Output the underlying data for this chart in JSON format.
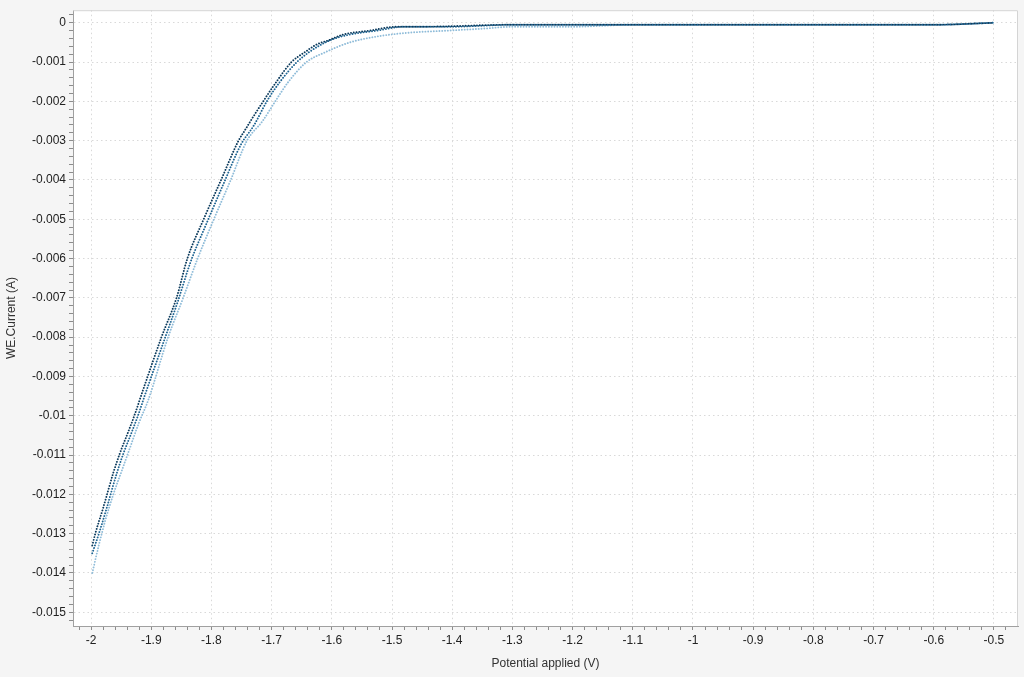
{
  "chart_data": {
    "type": "line",
    "xlabel": "Potential applied (V)",
    "ylabel": "WE.Current (A)",
    "xlim": [
      -2.03,
      -0.46
    ],
    "ylim": [
      -0.01535,
      0.00032
    ],
    "xticks": [
      {
        "value": -2.02,
        "label": null
      },
      -2,
      {
        "value": -1.98,
        "label": null
      },
      {
        "value": -1.96,
        "label": null
      },
      {
        "value": -1.94,
        "label": null
      },
      {
        "value": -1.92,
        "label": null
      },
      -1.9,
      {
        "value": -1.88,
        "label": null
      },
      {
        "value": -1.86,
        "label": null
      },
      {
        "value": -1.84,
        "label": null
      },
      {
        "value": -1.82,
        "label": null
      },
      -1.8,
      {
        "value": -1.78,
        "label": null
      },
      {
        "value": -1.76,
        "label": null
      },
      {
        "value": -1.74,
        "label": null
      },
      {
        "value": -1.72,
        "label": null
      },
      -1.7,
      {
        "value": -1.68,
        "label": null
      },
      {
        "value": -1.66,
        "label": null
      },
      {
        "value": -1.64,
        "label": null
      },
      {
        "value": -1.62,
        "label": null
      },
      -1.6,
      {
        "value": -1.58,
        "label": null
      },
      {
        "value": -1.56,
        "label": null
      },
      {
        "value": -1.54,
        "label": null
      },
      {
        "value": -1.52,
        "label": null
      },
      -1.5,
      {
        "value": -1.48,
        "label": null
      },
      {
        "value": -1.46,
        "label": null
      },
      {
        "value": -1.44,
        "label": null
      },
      {
        "value": -1.42,
        "label": null
      },
      -1.4,
      {
        "value": -1.38,
        "label": null
      },
      {
        "value": -1.36,
        "label": null
      },
      {
        "value": -1.34,
        "label": null
      },
      {
        "value": -1.32,
        "label": null
      },
      -1.3,
      {
        "value": -1.28,
        "label": null
      },
      {
        "value": -1.26,
        "label": null
      },
      {
        "value": -1.24,
        "label": null
      },
      {
        "value": -1.22,
        "label": null
      },
      -1.2,
      {
        "value": -1.18,
        "label": null
      },
      {
        "value": -1.16,
        "label": null
      },
      {
        "value": -1.14,
        "label": null
      },
      {
        "value": -1.12,
        "label": null
      },
      -1.1,
      {
        "value": -1.08,
        "label": null
      },
      {
        "value": -1.06,
        "label": null
      },
      {
        "value": -1.04,
        "label": null
      },
      {
        "value": -1.02,
        "label": null
      },
      -1,
      {
        "value": -0.98,
        "label": null
      },
      {
        "value": -0.96,
        "label": null
      },
      {
        "value": -0.94,
        "label": null
      },
      {
        "value": -0.92,
        "label": null
      },
      -0.9,
      {
        "value": -0.88,
        "label": null
      },
      {
        "value": -0.86,
        "label": null
      },
      {
        "value": -0.84,
        "label": null
      },
      {
        "value": -0.82,
        "label": null
      },
      -0.8,
      {
        "value": -0.78,
        "label": null
      },
      {
        "value": -0.76,
        "label": null
      },
      {
        "value": -0.74,
        "label": null
      },
      {
        "value": -0.72,
        "label": null
      },
      -0.7,
      {
        "value": -0.68,
        "label": null
      },
      {
        "value": -0.66,
        "label": null
      },
      {
        "value": -0.64,
        "label": null
      },
      {
        "value": -0.62,
        "label": null
      },
      -0.6,
      {
        "value": -0.58,
        "label": null
      },
      {
        "value": -0.56,
        "label": null
      },
      {
        "value": -0.54,
        "label": null
      },
      {
        "value": -0.52,
        "label": null
      },
      -0.5,
      {
        "value": -0.48,
        "label": null
      }
    ],
    "yticks": [
      {
        "value": 0.0002,
        "label": null
      },
      0,
      {
        "value": -0.0002,
        "label": null
      },
      {
        "value": -0.0004,
        "label": null
      },
      {
        "value": -0.0006,
        "label": null
      },
      {
        "value": -0.0008,
        "label": null
      },
      -0.001,
      {
        "value": -0.0012,
        "label": null
      },
      {
        "value": -0.0014,
        "label": null
      },
      {
        "value": -0.0016,
        "label": null
      },
      {
        "value": -0.0018,
        "label": null
      },
      -0.002,
      {
        "value": -0.0022,
        "label": null
      },
      {
        "value": -0.0024,
        "label": null
      },
      {
        "value": -0.0026,
        "label": null
      },
      {
        "value": -0.0028,
        "label": null
      },
      -0.003,
      {
        "value": -0.0032,
        "label": null
      },
      {
        "value": -0.0034,
        "label": null
      },
      {
        "value": -0.0036,
        "label": null
      },
      {
        "value": -0.0038,
        "label": null
      },
      -0.004,
      {
        "value": -0.0042,
        "label": null
      },
      {
        "value": -0.0044,
        "label": null
      },
      {
        "value": -0.0046,
        "label": null
      },
      {
        "value": -0.0048,
        "label": null
      },
      -0.005,
      {
        "value": -0.0052,
        "label": null
      },
      {
        "value": -0.0054,
        "label": null
      },
      {
        "value": -0.0056,
        "label": null
      },
      {
        "value": -0.0058,
        "label": null
      },
      -0.006,
      {
        "value": -0.0062,
        "label": null
      },
      {
        "value": -0.0064,
        "label": null
      },
      {
        "value": -0.0066,
        "label": null
      },
      {
        "value": -0.0068,
        "label": null
      },
      -0.007,
      {
        "value": -0.0072,
        "label": null
      },
      {
        "value": -0.0074,
        "label": null
      },
      {
        "value": -0.0076,
        "label": null
      },
      {
        "value": -0.0078,
        "label": null
      },
      -0.008,
      {
        "value": -0.0082,
        "label": null
      },
      {
        "value": -0.0084,
        "label": null
      },
      {
        "value": -0.0086,
        "label": null
      },
      {
        "value": -0.0088,
        "label": null
      },
      -0.009,
      {
        "value": -0.0092,
        "label": null
      },
      {
        "value": -0.0094,
        "label": null
      },
      {
        "value": -0.0096,
        "label": null
      },
      {
        "value": -0.0098,
        "label": null
      },
      -0.01,
      {
        "value": -0.0102,
        "label": null
      },
      {
        "value": -0.0104,
        "label": null
      },
      {
        "value": -0.0106,
        "label": null
      },
      {
        "value": -0.0108,
        "label": null
      },
      -0.011,
      {
        "value": -0.0112,
        "label": null
      },
      {
        "value": -0.0114,
        "label": null
      },
      {
        "value": -0.0116,
        "label": null
      },
      {
        "value": -0.0118,
        "label": null
      },
      -0.012,
      {
        "value": -0.0122,
        "label": null
      },
      {
        "value": -0.0124,
        "label": null
      },
      {
        "value": -0.0126,
        "label": null
      },
      {
        "value": -0.0128,
        "label": null
      },
      -0.013,
      {
        "value": -0.0132,
        "label": null
      },
      {
        "value": -0.0134,
        "label": null
      },
      {
        "value": -0.0136,
        "label": null
      },
      {
        "value": -0.0138,
        "label": null
      },
      -0.014,
      {
        "value": -0.0142,
        "label": null
      },
      {
        "value": -0.0144,
        "label": null
      },
      {
        "value": -0.0146,
        "label": null
      },
      {
        "value": -0.0148,
        "label": null
      },
      -0.015,
      {
        "value": -0.0152,
        "label": null
      }
    ],
    "grid": true,
    "legend": false,
    "line_style": "dotted",
    "series": [
      {
        "color": "#0b3a5c",
        "x": [
          -1.998,
          -1.993,
          -1.98,
          -1.963,
          -1.952,
          -1.938,
          -1.927,
          -1.916,
          -1.883,
          -1.858,
          -1.84,
          -1.813,
          -1.784,
          -1.755,
          -1.747,
          -1.735,
          -1.714,
          -1.692,
          -1.667,
          -1.645,
          -1.625,
          -1.606,
          -1.581,
          -1.537,
          -1.492,
          -1.45,
          -1.3,
          -1.2,
          -1,
          -0.8,
          -0.6,
          -0.5
        ],
        "values": [
          -0.0133,
          -0.013,
          -0.01235,
          -0.01145,
          -0.01095,
          -0.0104,
          -0.00995,
          -0.00945,
          -0.008,
          -0.007,
          -0.006,
          -0.005,
          -0.004,
          -0.003,
          -0.0028,
          -0.0025,
          -0.002,
          -0.0015,
          -0.001,
          -0.00075,
          -0.00055,
          -0.00045,
          -0.0003,
          -0.0002,
          -0.0001,
          -0.0001,
          -5e-05,
          -5e-05,
          -5e-05,
          -5e-05,
          -5e-05,
          0
        ]
      },
      {
        "color": "#1f6593",
        "x": [
          -1.998,
          -1.987,
          -1.974,
          -1.957,
          -1.946,
          -1.932,
          -1.921,
          -1.91,
          -1.879,
          -1.856,
          -1.835,
          -1.808,
          -1.78,
          -1.751,
          -1.729,
          -1.708,
          -1.686,
          -1.658,
          -1.638,
          -1.617,
          -1.595,
          -1.57,
          -1.525,
          -1.48,
          -1.4,
          -1.3,
          -1.2,
          -1,
          -0.8,
          -0.6,
          -0.5
        ],
        "values": [
          -0.0135,
          -0.013,
          -0.01235,
          -0.01145,
          -0.01095,
          -0.0104,
          -0.00995,
          -0.00945,
          -0.0081,
          -0.0071,
          -0.0061,
          -0.0051,
          -0.0041,
          -0.0031,
          -0.0026,
          -0.002,
          -0.0015,
          -0.001,
          -0.00075,
          -0.00055,
          -0.0004,
          -0.0003,
          -0.0002,
          -0.0001,
          -0.0001,
          -5e-05,
          -5e-05,
          -5e-05,
          -5e-05,
          -5e-05,
          0
        ]
      },
      {
        "color": "#8fbcd9",
        "x": [
          -1.998,
          -1.988,
          -1.977,
          -1.963,
          -1.949,
          -1.935,
          -1.921,
          -1.905,
          -1.872,
          -1.847,
          -1.823,
          -1.796,
          -1.768,
          -1.741,
          -1.715,
          -1.694,
          -1.672,
          -1.642,
          -1.611,
          -1.57,
          -1.525,
          -1.47,
          -1.409,
          -1.35,
          -1.299,
          -1.2,
          -1.1,
          -1,
          -0.8,
          -0.6,
          -0.5
        ],
        "values": [
          -0.014,
          -0.01335,
          -0.0127,
          -0.012,
          -0.0114,
          -0.0108,
          -0.0102,
          -0.0096,
          -0.008,
          -0.007,
          -0.006,
          -0.005,
          -0.004,
          -0.003,
          -0.0025,
          -0.002,
          -0.0015,
          -0.001,
          -0.00075,
          -0.0005,
          -0.00035,
          -0.00025,
          -0.0002,
          -0.00015,
          -0.0001,
          -0.0001,
          -5e-05,
          -5e-05,
          -5e-05,
          -5e-05,
          0
        ]
      }
    ]
  }
}
